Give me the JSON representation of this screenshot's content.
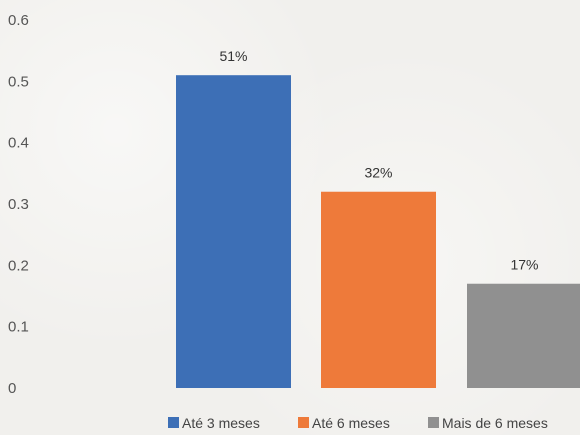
{
  "chart_data": {
    "type": "bar",
    "categories": [
      "Até 3 meses",
      "Até 6 meses",
      "Mais de 6 meses"
    ],
    "values": [
      0.51,
      0.32,
      0.17
    ],
    "data_labels": [
      "51%",
      "32%",
      "17%"
    ],
    "colors": [
      "#3d6fb6",
      "#ee7a3a",
      "#909090"
    ],
    "ylim": [
      0,
      0.6
    ],
    "yticks": [
      "0",
      "0.1",
      "0.2",
      "0.3",
      "0.4",
      "0.5",
      "0.6"
    ],
    "grid": false,
    "legend_position": "bottom",
    "legend": [
      "Até 3 meses",
      "Até 6 meses",
      "Mais de 6 meses"
    ]
  }
}
